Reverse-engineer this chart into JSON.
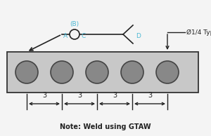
{
  "white_bg": "#f4f4f4",
  "rect_color": "#c8c8c8",
  "rect_edge": "#333333",
  "circle_color": "#888888",
  "circle_edge": "#444444",
  "cyan_color": "#4bb8d4",
  "black_color": "#222222",
  "label_A": "A",
  "label_B": "(B)",
  "label_C": "C",
  "label_D": "D",
  "label_dia": "Ø1/4 Typ",
  "note_text": "Note: Weld using GTAW",
  "dim_values": [
    "3",
    "3",
    "3",
    "3"
  ],
  "figw": 3.0,
  "figh": 1.94,
  "dpi": 100
}
